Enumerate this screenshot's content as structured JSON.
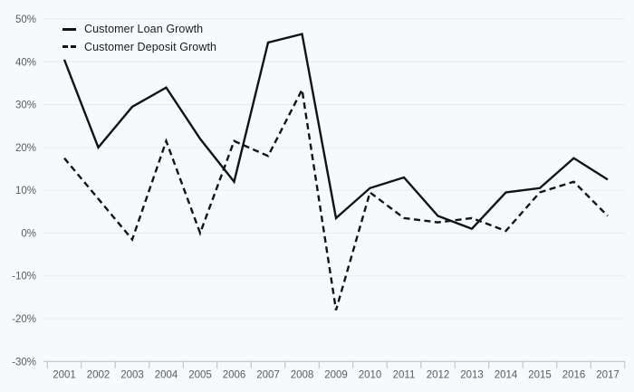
{
  "chart_data": {
    "type": "line",
    "x": [
      "2001",
      "2002",
      "2003",
      "2004",
      "2005",
      "2006",
      "2007",
      "2008",
      "2009",
      "2010",
      "2011",
      "2012",
      "2013",
      "2014",
      "2015",
      "2016",
      "2017"
    ],
    "series": [
      {
        "name": "Customer Loan Growth",
        "style": "solid",
        "values": [
          40.5,
          20,
          29.5,
          34,
          22,
          12,
          44.5,
          46.5,
          3.5,
          10.5,
          13,
          4,
          1,
          9.5,
          10.5,
          17.5,
          12.5
        ]
      },
      {
        "name": "Customer Deposit Growth",
        "style": "dashed",
        "values": [
          17.5,
          8,
          -1.5,
          21.5,
          0,
          21.5,
          18,
          33.5,
          -18,
          9.5,
          3.5,
          2.5,
          3.5,
          0.5,
          9.5,
          12,
          4
        ]
      }
    ],
    "title": "",
    "xlabel": "",
    "ylabel": "",
    "ylim": [
      -30,
      50
    ],
    "yticks": [
      50,
      40,
      30,
      20,
      10,
      0,
      -10,
      -20,
      -30
    ],
    "ytick_labels": [
      "50%",
      "40%",
      "30%",
      "20%",
      "10%",
      "0%",
      "-10%",
      "-20%",
      "-30%"
    ],
    "grid": true,
    "legend_position": "top-left"
  },
  "colors": {
    "background": "#f8f9fa",
    "line": "#121316",
    "gridline": "#e9ebee",
    "axis": "#b3bccb",
    "tick_label": "#565c66",
    "legend_text": "#1b1d20"
  }
}
